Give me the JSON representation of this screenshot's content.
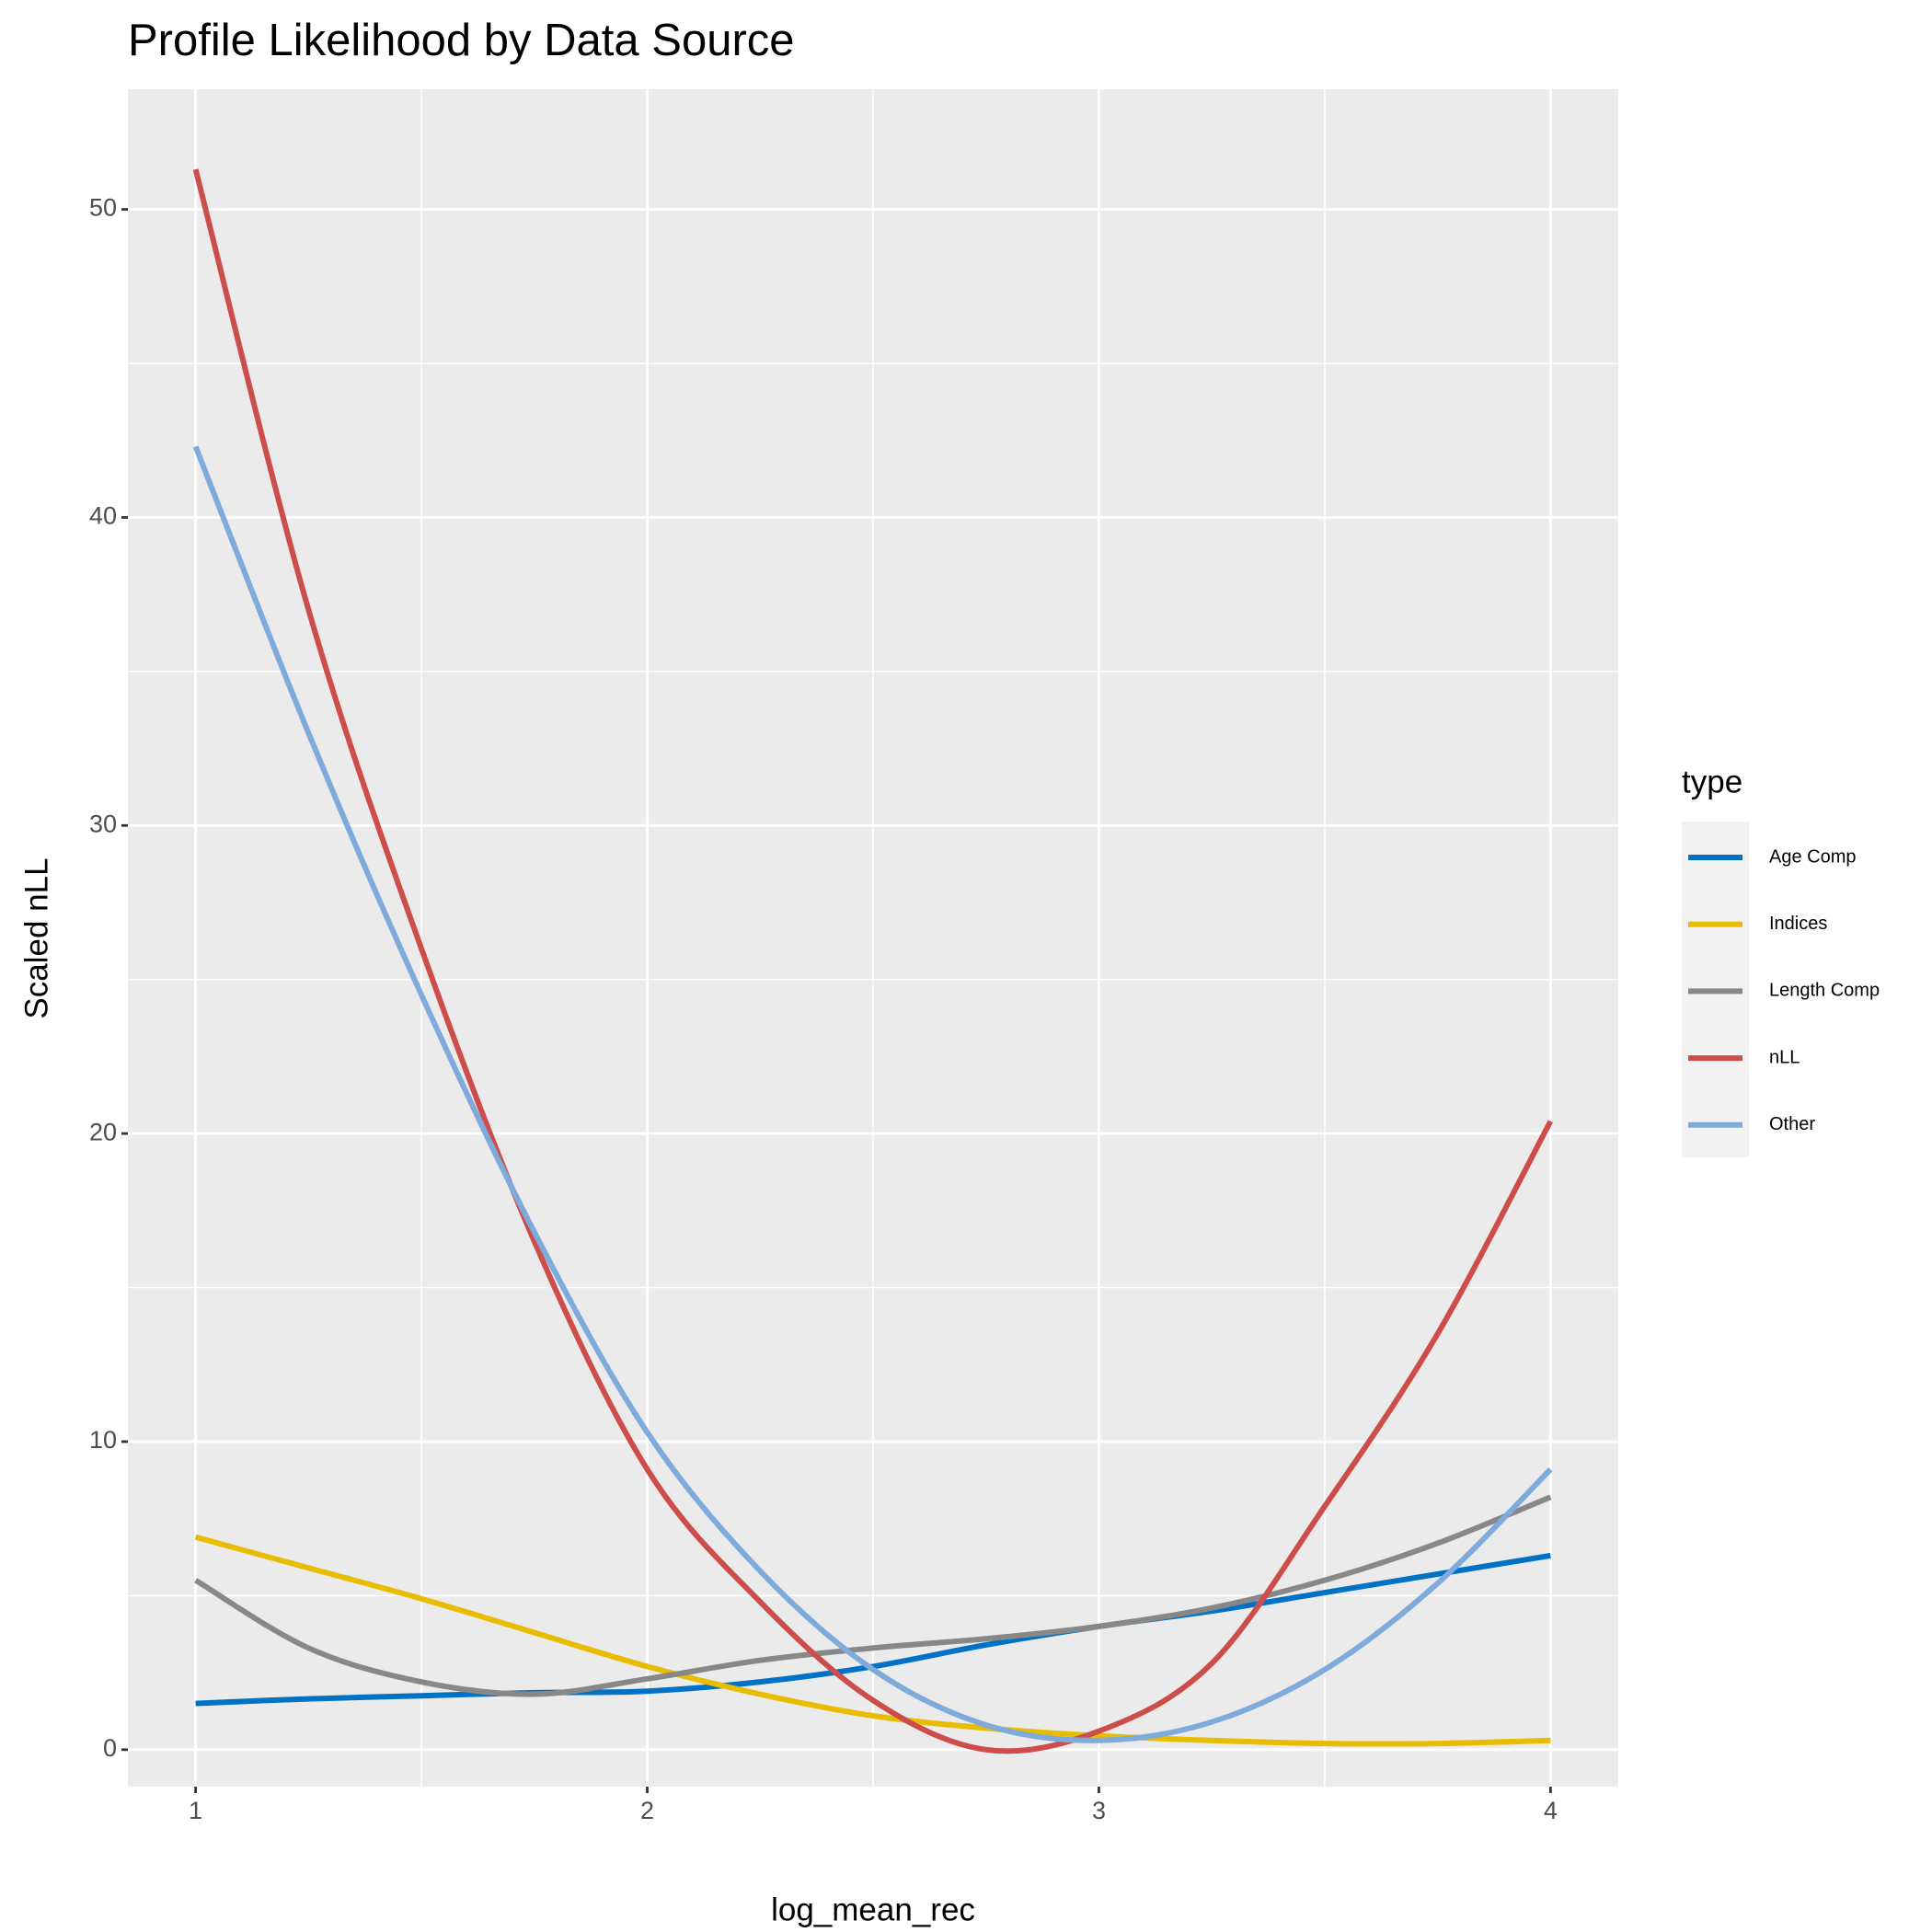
{
  "chart_data": {
    "type": "line",
    "title": "Profile Likelihood by Data Source",
    "x_label": "log_mean_rec",
    "y_label": "Scaled nLL",
    "legend_title": "type",
    "x": [
      1,
      1.25,
      1.5,
      1.75,
      2,
      2.25,
      2.5,
      2.75,
      3,
      3.25,
      3.5,
      3.75,
      4
    ],
    "series": [
      {
        "name": "Age Comp",
        "color": "#0072c6",
        "values": [
          1.5,
          1.65,
          1.75,
          1.85,
          1.9,
          2.2,
          2.7,
          3.4,
          4.0,
          4.5,
          5.1,
          5.7,
          6.3
        ]
      },
      {
        "name": "Indices",
        "color": "#e8bc00",
        "values": [
          6.9,
          5.9,
          4.9,
          3.8,
          2.7,
          1.8,
          1.1,
          0.7,
          0.45,
          0.3,
          0.2,
          0.2,
          0.3
        ]
      },
      {
        "name": "Length Comp",
        "color": "#888888",
        "values": [
          5.5,
          3.3,
          2.2,
          1.8,
          2.3,
          2.9,
          3.3,
          3.6,
          4.0,
          4.6,
          5.5,
          6.7,
          8.2
        ]
      },
      {
        "name": "nLL",
        "color": "#cd4d4a",
        "values": [
          51.3,
          37,
          26,
          16.5,
          9.1,
          4.8,
          1.6,
          0.0,
          0.6,
          2.8,
          7.9,
          13.5,
          20.4
        ]
      },
      {
        "name": "Other",
        "color": "#7faadc",
        "values": [
          42.3,
          33,
          24.5,
          16.8,
          10.3,
          5.8,
          2.6,
          0.8,
          0.3,
          0.9,
          2.6,
          5.4,
          9.1
        ]
      }
    ],
    "xlim": [
      0.85,
      4.15
    ],
    "xticks": [
      1,
      2,
      3,
      4
    ],
    "ylim": [
      -1.2,
      53.9
    ],
    "yticks": [
      0,
      10,
      20,
      30,
      40,
      50
    ],
    "grid": true,
    "legend": "right"
  }
}
